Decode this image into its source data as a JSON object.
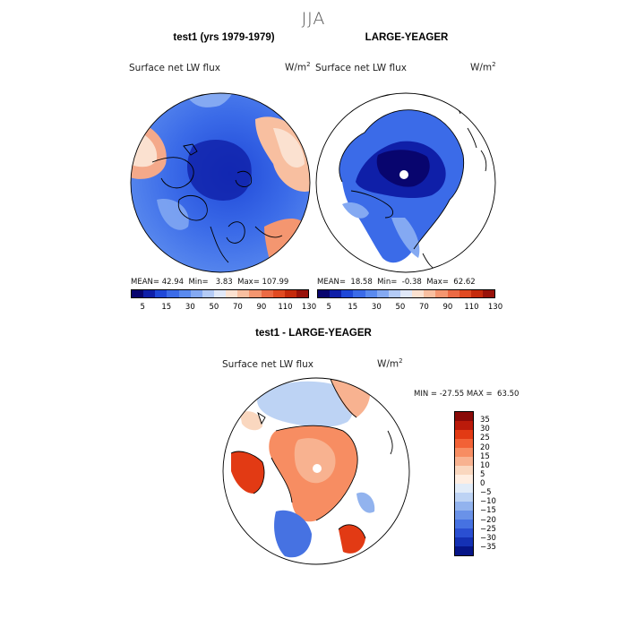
{
  "figure": {
    "title": "JJA"
  },
  "panels": {
    "model": {
      "title": "test1 (yrs 1979-1979)",
      "variable": "Surface net LW flux",
      "units": "W/m",
      "units_exp": "2",
      "stats": {
        "mean_label": "MEAN=",
        "mean": "42.94",
        "min_label": "Min=",
        "min": "3.83",
        "max_label": "Max=",
        "max": "107.99"
      }
    },
    "obs": {
      "title": "LARGE-YEAGER",
      "variable": "Surface net LW flux",
      "units": "W/m",
      "units_exp": "2",
      "stats": {
        "mean_label": "MEAN=",
        "mean": "18.58",
        "min_label": "Min=",
        "min": "-0.38",
        "max_label": "Max=",
        "max": "62.62"
      }
    },
    "diff": {
      "title": "test1 - LARGE-YEAGER",
      "variable": "Surface net LW flux",
      "units": "W/m",
      "units_exp": "2",
      "stats": {
        "min_label": "MIN =",
        "min": "-27.55",
        "max_label": "MAX =",
        "max": "63.50"
      }
    }
  },
  "colorbar_top": {
    "colors": [
      "#08056e",
      "#0f1fa8",
      "#1f48d8",
      "#3b6be8",
      "#5a8aee",
      "#84a9f2",
      "#b4cbf6",
      "#e0e8f8",
      "#fbe1d0",
      "#f8bfa0",
      "#f49670",
      "#ec6a44",
      "#e14a22",
      "#c52a0c",
      "#98120a"
    ],
    "ticks": [
      "5",
      "15",
      "30",
      "50",
      "70",
      "90",
      "110",
      "130"
    ]
  },
  "colorbar_diff": {
    "colors": [
      "#8a0a08",
      "#bb1a0a",
      "#e23a14",
      "#f26236",
      "#f78d62",
      "#f8b290",
      "#fad7bf",
      "#ffeee2",
      "#e2ecf8",
      "#bdd3f4",
      "#92b3ee",
      "#6a92e8",
      "#4672e2",
      "#2a4fd2",
      "#1431b4",
      "#061587"
    ],
    "ticks": [
      "35",
      "30",
      "25",
      "20",
      "15",
      "10",
      "5",
      "0",
      "-5",
      "-10",
      "-15",
      "-20",
      "-25",
      "-30",
      "-35"
    ]
  }
}
